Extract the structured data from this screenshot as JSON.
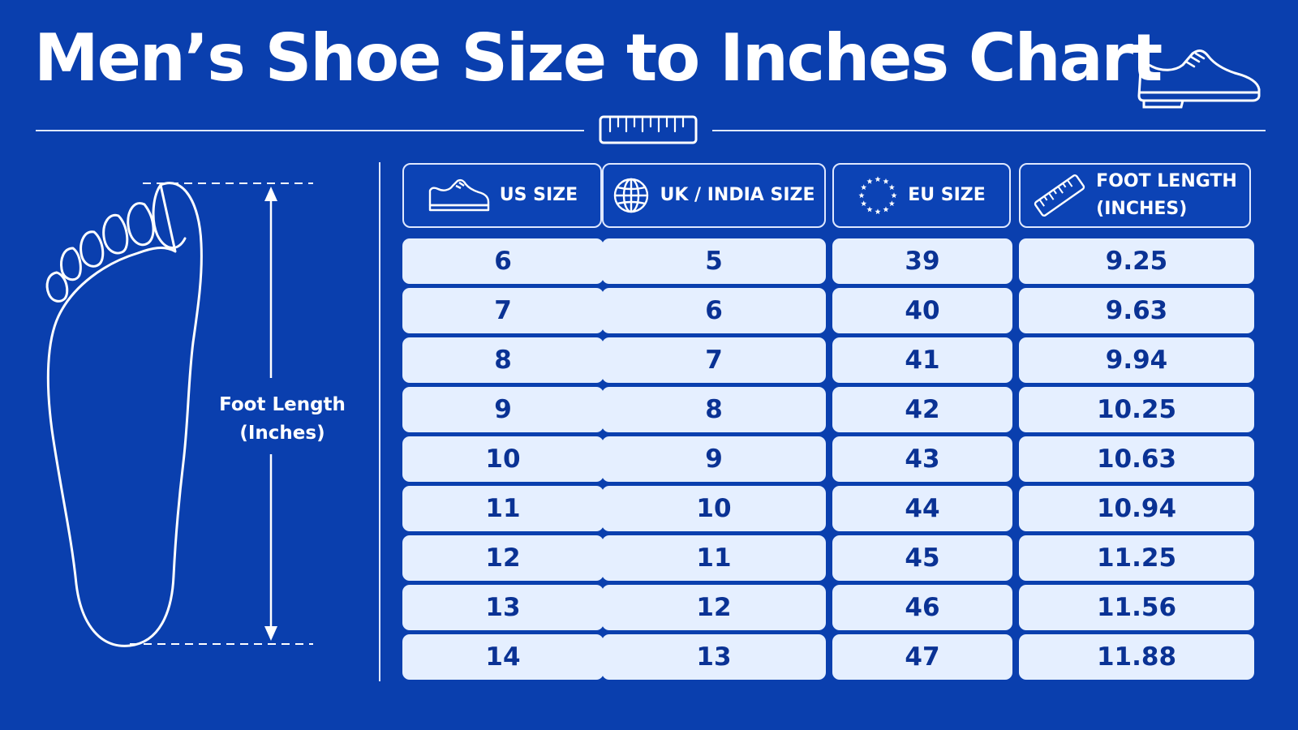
{
  "title": "Men’s Shoe Size to Inches Chart",
  "foot_label": "Foot Length\n(Inches)",
  "colors": {
    "background": "#0a3fae",
    "cell_fill": "#e5efff",
    "cell_text": "#0a3294",
    "line": "#dfe8ff"
  },
  "icons": {
    "title": "shoe-icon",
    "divider": "ruler-icon",
    "columns": [
      "shoe-icon",
      "globe-icon",
      "eu-stars-icon",
      "ruler-icon"
    ]
  },
  "chart_data": {
    "type": "table",
    "columns": [
      "US SIZE",
      "UK / INDIA SIZE",
      "EU SIZE",
      "FOOT LENGTH\n(INCHES)"
    ],
    "rows": [
      [
        "6",
        "5",
        "39",
        "9.25"
      ],
      [
        "7",
        "6",
        "40",
        "9.63"
      ],
      [
        "8",
        "7",
        "41",
        "9.94"
      ],
      [
        "9",
        "8",
        "42",
        "10.25"
      ],
      [
        "10",
        "9",
        "43",
        "10.63"
      ],
      [
        "11",
        "10",
        "44",
        "10.94"
      ],
      [
        "12",
        "11",
        "45",
        "11.25"
      ],
      [
        "13",
        "12",
        "46",
        "11.56"
      ],
      [
        "14",
        "13",
        "47",
        "11.88"
      ]
    ]
  }
}
